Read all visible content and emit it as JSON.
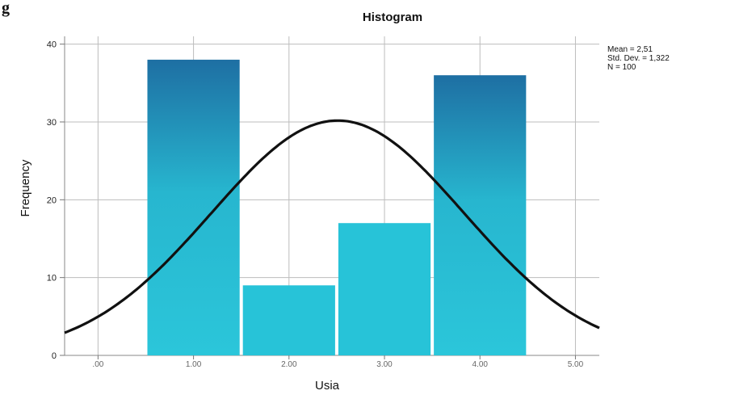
{
  "corner_text": "g",
  "chart_data": {
    "type": "bar",
    "title": "Histogram",
    "xlabel": "Usia",
    "ylabel": "Frequency",
    "categories": [
      "1.00",
      "2.00",
      "3.00",
      "4.00"
    ],
    "bin_centers": [
      1,
      2,
      3,
      4
    ],
    "values": [
      38,
      9,
      17,
      36
    ],
    "xticks": [
      ".00",
      "1.00",
      "2.00",
      "3.00",
      "4.00",
      "5.00"
    ],
    "xtick_values": [
      0,
      1,
      2,
      3,
      4,
      5
    ],
    "yticks": [
      0,
      10,
      20,
      30,
      40
    ],
    "xlim": [
      -0.35,
      5.25
    ],
    "ylim": [
      0,
      41
    ],
    "grid": true,
    "bar_color": "#27c3d8",
    "bar_color_top": "#1e6fa3",
    "curve_color": "#111111",
    "normal_curve": {
      "mean": 2.51,
      "std_dev": 1.322,
      "n": 100,
      "bin_width": 1
    },
    "stats": {
      "mean_text": "Mean = 2,51",
      "std_text": "Std. Dev. = 1,322",
      "n_text": "N = 100"
    }
  }
}
